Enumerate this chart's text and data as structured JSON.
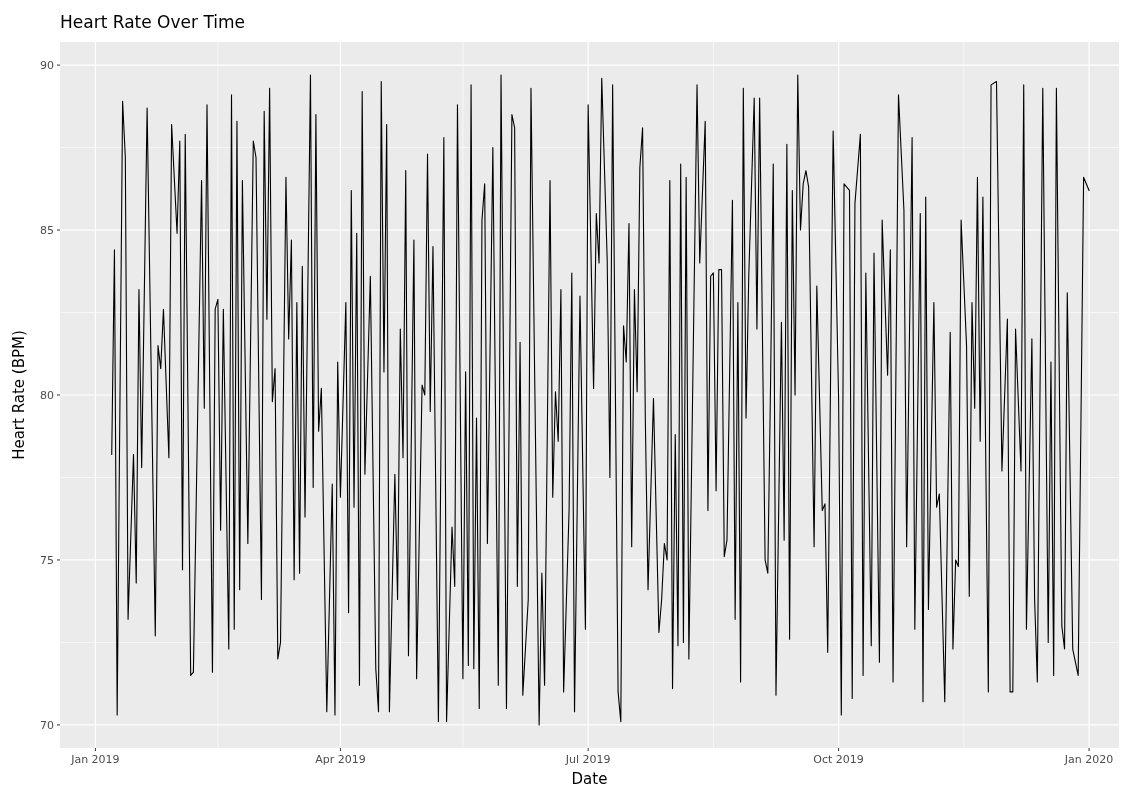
{
  "chart_data": {
    "type": "line",
    "title": "Heart Rate Over Time",
    "xlabel": "Date",
    "ylabel": "Heart Rate (BPM)",
    "xlim": [
      "2018-12-19",
      "2020-01-12"
    ],
    "xticks": [
      {
        "value": "2019-01-01",
        "label": "Jan 2019"
      },
      {
        "value": "2019-02-15",
        "label": null
      },
      {
        "value": "2019-04-01",
        "label": "Apr 2019"
      },
      {
        "value": "2019-05-16",
        "label": null
      },
      {
        "value": "2019-07-01",
        "label": "Jul 2019"
      },
      {
        "value": "2019-08-16",
        "label": null
      },
      {
        "value": "2019-10-01",
        "label": "Oct 2019"
      },
      {
        "value": "2019-11-16",
        "label": null
      },
      {
        "value": "2020-01-01",
        "label": "Jan 2020"
      }
    ],
    "ylim": [
      69.3,
      90.7
    ],
    "yticks": [
      70,
      {
        "value": 72.5,
        "label": null
      },
      75,
      {
        "value": 77.5,
        "label": null
      },
      80,
      {
        "value": 82.5,
        "label": null
      },
      85,
      {
        "value": 87.5,
        "label": null
      },
      90
    ],
    "grid": true,
    "series": [
      {
        "color": "#000000",
        "x": [
          "2019-01-07",
          "2019-01-08",
          "2019-01-09",
          "2019-01-11",
          "2019-01-12",
          "2019-01-13",
          "2019-01-15",
          "2019-01-16",
          "2019-01-17",
          "2019-01-18",
          "2019-01-20",
          "2019-01-23",
          "2019-01-24",
          "2019-01-25",
          "2019-01-26",
          "2019-01-28",
          "2019-01-29",
          "2019-01-31",
          "2019-02-01",
          "2019-02-02",
          "2019-02-03",
          "2019-02-05",
          "2019-02-06",
          "2019-02-09",
          "2019-02-10",
          "2019-02-11",
          "2019-02-13",
          "2019-02-14",
          "2019-02-15",
          "2019-02-16",
          "2019-02-17",
          "2019-02-19",
          "2019-02-20",
          "2019-02-21",
          "2019-02-22",
          "2019-02-23",
          "2019-02-24",
          "2019-02-26",
          "2019-02-28",
          "2019-03-01",
          "2019-03-03",
          "2019-03-04",
          "2019-03-05",
          "2019-03-06",
          "2019-03-07",
          "2019-03-08",
          "2019-03-09",
          "2019-03-10",
          "2019-03-12",
          "2019-03-13",
          "2019-03-14",
          "2019-03-15",
          "2019-03-16",
          "2019-03-17",
          "2019-03-18",
          "2019-03-19",
          "2019-03-21",
          "2019-03-22",
          "2019-03-23",
          "2019-03-24",
          "2019-03-25",
          "2019-03-27",
          "2019-03-29",
          "2019-03-30",
          "2019-03-31",
          "2019-04-01",
          "2019-04-03",
          "2019-04-04",
          "2019-04-05",
          "2019-04-06",
          "2019-04-07",
          "2019-04-08",
          "2019-04-09",
          "2019-04-10",
          "2019-04-12",
          "2019-04-14",
          "2019-04-15",
          "2019-04-16",
          "2019-04-17",
          "2019-04-18",
          "2019-04-19",
          "2019-04-21",
          "2019-04-22",
          "2019-04-23",
          "2019-04-24",
          "2019-04-25",
          "2019-04-26",
          "2019-04-28",
          "2019-04-29",
          "2019-05-01",
          "2019-05-02",
          "2019-05-03",
          "2019-05-04",
          "2019-05-05",
          "2019-05-07",
          "2019-05-09",
          "2019-05-10",
          "2019-05-12",
          "2019-05-13",
          "2019-05-14",
          "2019-05-16",
          "2019-05-17",
          "2019-05-18",
          "2019-05-19",
          "2019-05-20",
          "2019-05-21",
          "2019-05-22",
          "2019-05-23",
          "2019-05-24",
          "2019-05-25",
          "2019-05-27",
          "2019-05-29",
          "2019-05-30",
          "2019-06-01",
          "2019-06-03",
          "2019-06-04",
          "2019-06-05",
          "2019-06-06",
          "2019-06-07",
          "2019-06-09",
          "2019-06-10",
          "2019-06-12",
          "2019-06-13",
          "2019-06-14",
          "2019-06-15",
          "2019-06-17",
          "2019-06-18",
          "2019-06-19",
          "2019-06-20",
          "2019-06-21",
          "2019-06-22",
          "2019-06-24",
          "2019-06-25",
          "2019-06-26",
          "2019-06-28",
          "2019-06-30",
          "2019-07-01",
          "2019-07-03",
          "2019-07-04",
          "2019-07-05",
          "2019-07-06",
          "2019-07-08",
          "2019-07-09",
          "2019-07-10",
          "2019-07-12",
          "2019-07-13",
          "2019-07-14",
          "2019-07-15",
          "2019-07-16",
          "2019-07-17",
          "2019-07-18",
          "2019-07-19",
          "2019-07-20",
          "2019-07-21",
          "2019-07-22",
          "2019-07-23",
          "2019-07-25",
          "2019-07-27",
          "2019-07-28",
          "2019-07-29",
          "2019-07-30",
          "2019-07-31",
          "2019-08-01",
          "2019-08-02",
          "2019-08-03",
          "2019-08-04",
          "2019-08-05",
          "2019-08-06",
          "2019-08-07",
          "2019-08-10",
          "2019-08-11",
          "2019-08-13",
          "2019-08-14",
          "2019-08-15",
          "2019-08-16",
          "2019-08-17",
          "2019-08-18",
          "2019-08-19",
          "2019-08-20",
          "2019-08-21",
          "2019-08-23",
          "2019-08-24",
          "2019-08-25",
          "2019-08-26",
          "2019-08-27",
          "2019-08-28",
          "2019-08-29",
          "2019-08-31",
          "2019-09-01",
          "2019-09-02",
          "2019-09-04",
          "2019-09-05",
          "2019-09-06",
          "2019-09-07",
          "2019-09-08",
          "2019-09-10",
          "2019-09-11",
          "2019-09-12",
          "2019-09-13",
          "2019-09-14",
          "2019-09-15",
          "2019-09-16",
          "2019-09-17",
          "2019-09-18",
          "2019-09-19",
          "2019-09-20",
          "2019-09-22",
          "2019-09-23",
          "2019-09-25",
          "2019-09-26",
          "2019-09-27",
          "2019-09-29",
          "2019-10-01",
          "2019-10-02",
          "2019-10-03",
          "2019-10-05",
          "2019-10-06",
          "2019-10-07",
          "2019-10-09",
          "2019-10-10",
          "2019-10-11",
          "2019-10-13",
          "2019-10-14",
          "2019-10-16",
          "2019-10-17",
          "2019-10-19",
          "2019-10-20",
          "2019-10-21",
          "2019-10-23",
          "2019-10-25",
          "2019-10-26",
          "2019-10-28",
          "2019-10-29",
          "2019-10-31",
          "2019-11-01",
          "2019-11-02",
          "2019-11-03",
          "2019-11-05",
          "2019-11-06",
          "2019-11-07",
          "2019-11-09",
          "2019-11-11",
          "2019-11-12",
          "2019-11-13",
          "2019-11-14",
          "2019-11-15",
          "2019-11-17",
          "2019-11-18",
          "2019-11-19",
          "2019-11-20",
          "2019-11-21",
          "2019-11-22",
          "2019-11-23",
          "2019-11-25",
          "2019-11-26",
          "2019-11-28",
          "2019-11-30",
          "2019-12-02",
          "2019-12-03",
          "2019-12-04",
          "2019-12-05",
          "2019-12-07",
          "2019-12-08",
          "2019-12-09",
          "2019-12-11",
          "2019-12-12",
          "2019-12-13",
          "2019-12-15",
          "2019-12-17",
          "2019-12-18",
          "2019-12-19",
          "2019-12-20",
          "2019-12-22",
          "2019-12-23",
          "2019-12-24",
          "2019-12-26",
          "2019-12-28",
          "2019-12-30",
          "2020-01-01"
        ],
        "values": [
          78.2,
          84.4,
          70.3,
          88.9,
          87.2,
          73.2,
          78.2,
          74.3,
          83.2,
          77.8,
          88.7,
          72.7,
          81.5,
          80.8,
          82.6,
          78.1,
          88.2,
          84.9,
          87.7,
          74.7,
          87.9,
          71.5,
          71.6,
          86.5,
          79.6,
          88.8,
          71.6,
          82.6,
          82.9,
          75.9,
          82.6,
          72.3,
          89.1,
          72.9,
          88.3,
          74.1,
          86.5,
          75.5,
          87.7,
          87.2,
          73.8,
          88.6,
          82.3,
          89.3,
          79.8,
          80.8,
          72.0,
          72.5,
          86.6,
          81.7,
          84.7,
          74.4,
          82.8,
          74.6,
          83.9,
          76.3,
          89.7,
          77.2,
          88.5,
          78.9,
          80.2,
          70.4,
          77.3,
          70.3,
          81.0,
          76.9,
          82.8,
          73.4,
          86.2,
          76.6,
          84.9,
          71.2,
          89.2,
          77.6,
          83.6,
          71.7,
          70.4,
          89.5,
          80.7,
          88.2,
          70.4,
          77.6,
          73.8,
          82.0,
          78.1,
          86.8,
          72.1,
          84.7,
          71.4,
          80.3,
          80.0,
          87.3,
          79.5,
          84.5,
          70.1,
          87.8,
          70.1,
          76.0,
          74.2,
          88.8,
          71.4,
          80.7,
          71.8,
          89.4,
          71.7,
          79.3,
          70.5,
          85.3,
          86.4,
          75.5,
          87.5,
          71.2,
          89.7,
          70.5,
          88.5,
          88.1,
          74.2,
          81.6,
          70.9,
          73.8,
          89.3,
          76.5,
          70.0,
          74.6,
          71.2,
          86.5,
          76.9,
          80.1,
          78.6,
          83.2,
          71.0,
          76.5,
          83.7,
          70.4,
          83.0,
          72.9,
          88.8,
          80.2,
          85.5,
          84.0,
          89.6,
          84.1,
          77.5,
          89.4,
          71.0,
          70.1,
          82.1,
          81.0,
          85.2,
          75.4,
          83.2,
          80.1,
          86.9,
          88.1,
          79.3,
          74.1,
          79.9,
          72.8,
          73.8,
          75.5,
          75.0,
          86.5,
          71.1,
          78.8,
          72.4,
          87.0,
          72.5,
          86.6,
          72.0,
          89.4,
          84.0,
          88.3,
          76.5,
          83.6,
          83.7,
          77.1,
          83.8,
          83.8,
          75.1,
          75.6,
          85.9,
          73.2,
          82.8,
          71.3,
          89.3,
          79.3,
          83.6,
          89.0,
          82.0,
          89.0,
          75.0,
          74.6,
          80.3,
          87.0,
          70.9,
          82.2,
          75.6,
          87.6,
          72.6,
          86.2,
          80.0,
          89.7,
          85.0,
          86.4,
          86.8,
          86.3,
          75.4,
          83.3,
          76.5,
          76.7,
          72.2,
          88.0,
          79.9,
          70.3,
          86.4,
          86.2,
          70.8,
          85.8,
          87.9,
          71.5,
          83.7,
          72.4,
          84.3,
          71.9,
          85.3,
          80.6,
          84.4,
          71.3,
          89.1,
          85.6,
          75.4,
          87.8,
          72.9,
          85.5,
          70.7,
          86.0,
          73.5,
          82.8,
          76.6,
          77.0,
          70.7,
          81.9,
          72.3,
          75.0,
          74.8,
          85.3,
          81.5,
          73.9,
          82.8,
          79.6,
          86.6,
          78.6,
          86.0,
          71.0,
          89.4,
          89.5,
          77.7,
          82.3,
          71.0,
          71.0,
          82.0,
          77.7,
          89.4,
          72.9,
          81.7,
          73.8,
          71.3,
          89.3,
          72.5,
          81.0,
          71.5,
          89.3,
          73.0,
          72.3,
          83.1,
          72.3,
          71.5,
          86.6,
          86.2
        ]
      }
    ]
  }
}
